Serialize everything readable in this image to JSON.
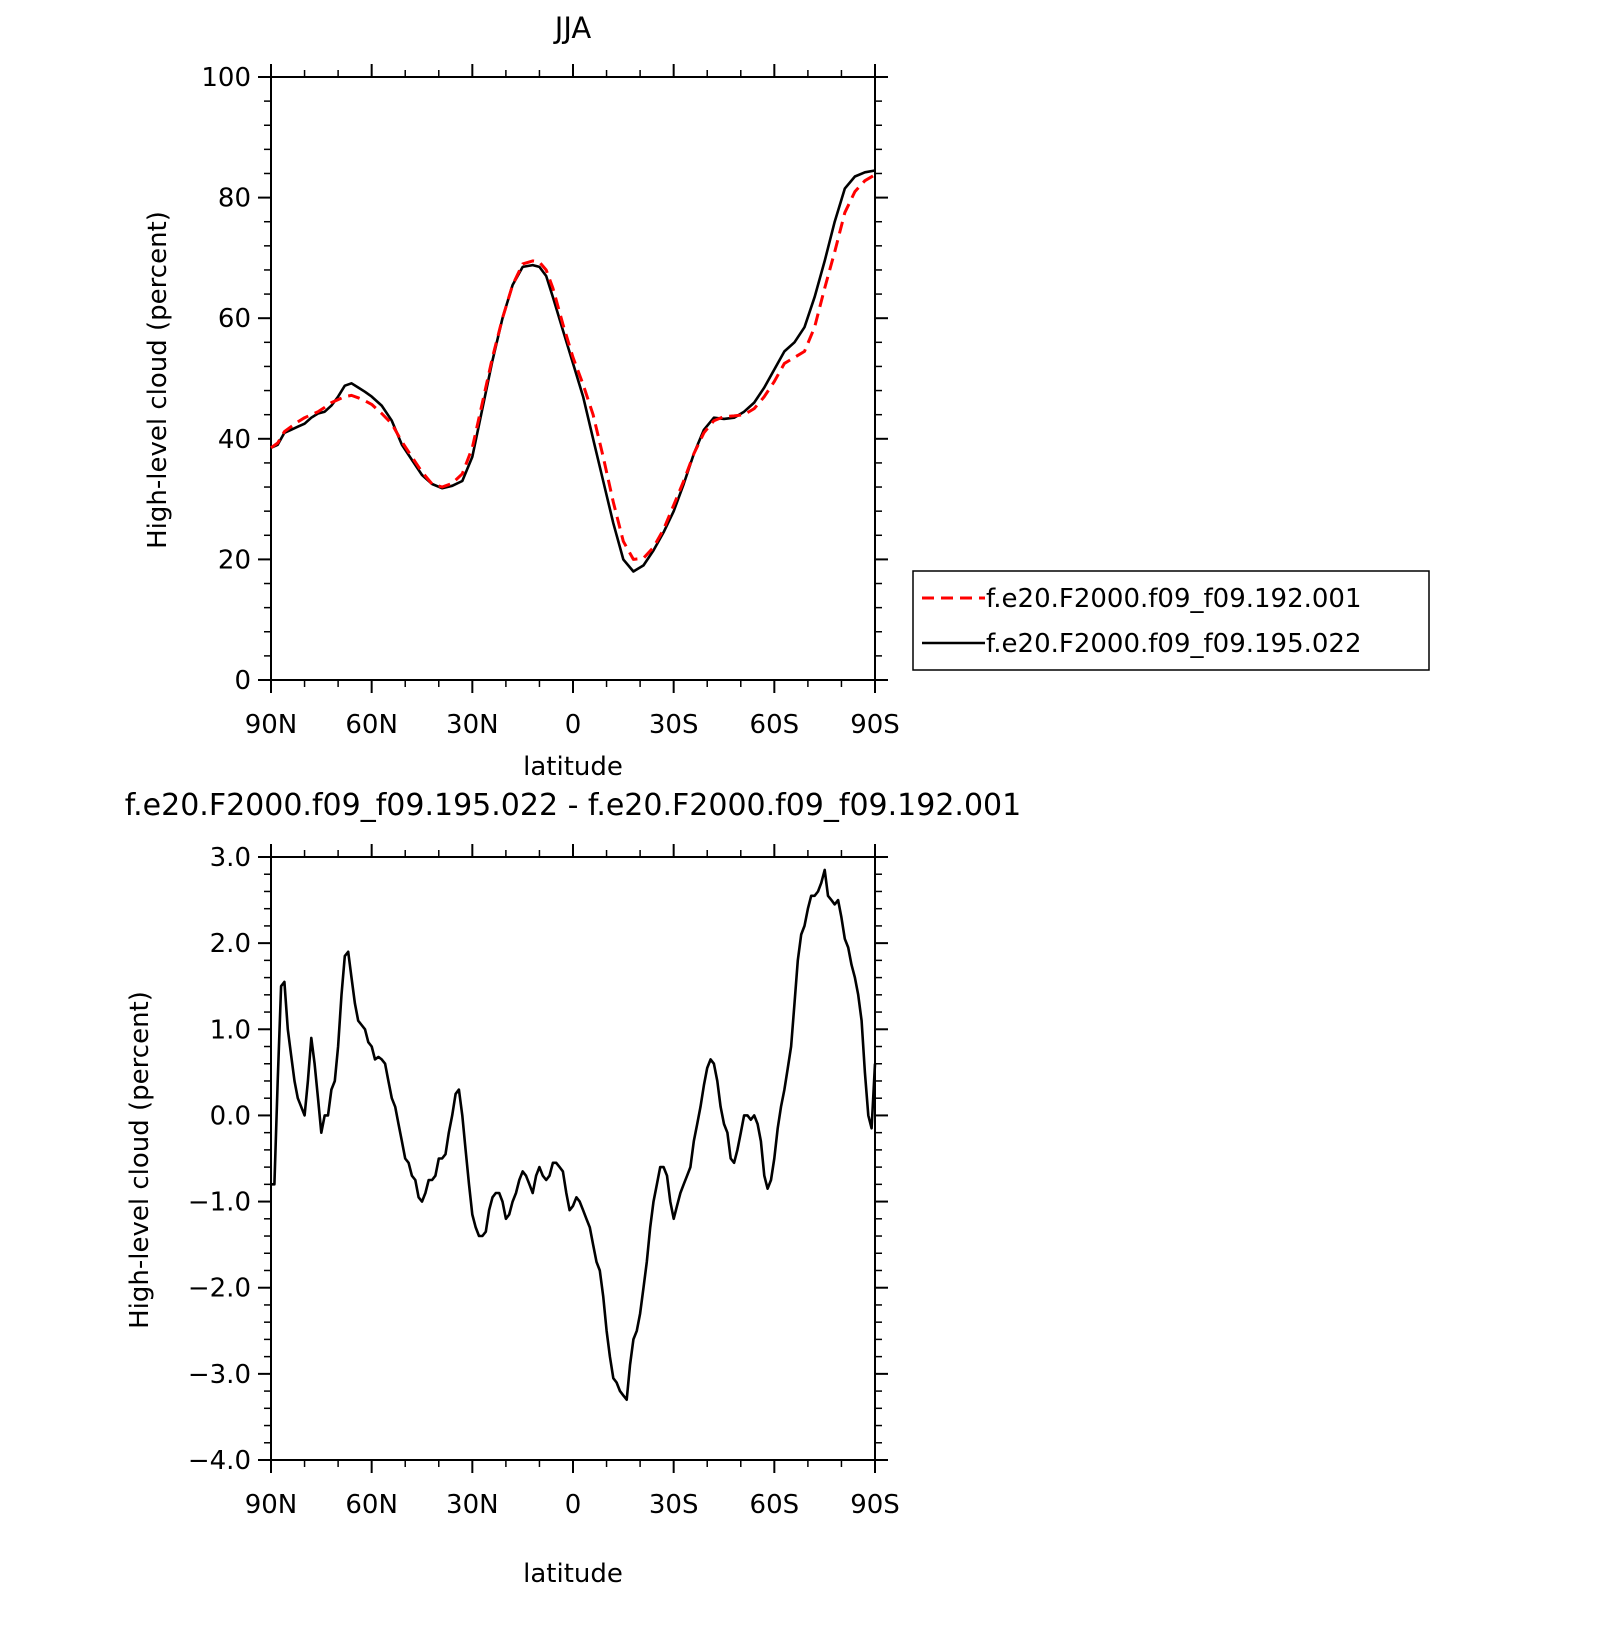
{
  "chart_data": [
    {
      "type": "line",
      "title": "JJA",
      "xlabel": "latitude",
      "ylabel": "High-level cloud (percent)",
      "xlim": [
        90,
        -90
      ],
      "ylim": [
        0,
        100
      ],
      "x_ticks": [
        {
          "value": 90,
          "label": "90N"
        },
        {
          "value": 60,
          "label": "60N"
        },
        {
          "value": 30,
          "label": "30N"
        },
        {
          "value": 0,
          "label": "0"
        },
        {
          "value": -30,
          "label": "30S"
        },
        {
          "value": -60,
          "label": "60S"
        },
        {
          "value": -90,
          "label": "90S"
        }
      ],
      "y_ticks": [
        {
          "value": 0,
          "label": "0"
        },
        {
          "value": 20,
          "label": "20"
        },
        {
          "value": 40,
          "label": "40"
        },
        {
          "value": 60,
          "label": "60"
        },
        {
          "value": 80,
          "label": "80"
        },
        {
          "value": 100,
          "label": "100"
        }
      ],
      "legend_position": "right",
      "series": [
        {
          "name": "f.e20.F2000.f09_f09.192.001",
          "color": "#ff0000",
          "dash": "dashed",
          "x": [
            90,
            88,
            86,
            84,
            82,
            80,
            78,
            76,
            74,
            72,
            70,
            68,
            66,
            64,
            62,
            60,
            57,
            54,
            51,
            48,
            45,
            42,
            39,
            36,
            33,
            30,
            27,
            24,
            21,
            18,
            15,
            12,
            10,
            8,
            6,
            3,
            0,
            -3,
            -6,
            -9,
            -12,
            -15,
            -18,
            -21,
            -24,
            -27,
            -30,
            -33,
            -36,
            -39,
            -42,
            -45,
            -48,
            -51,
            -54,
            -57,
            -60,
            -63,
            -66,
            -69,
            -72,
            -75,
            -78,
            -81,
            -84,
            -87,
            -90
          ],
          "y": [
            38.5,
            39.3,
            41.2,
            42.0,
            42.8,
            43.5,
            44.0,
            44.5,
            45.2,
            46.0,
            46.5,
            47.0,
            47.2,
            46.8,
            46.3,
            45.7,
            44.2,
            42.5,
            39.5,
            37.0,
            34.5,
            32.5,
            32.0,
            32.6,
            34.2,
            38.5,
            46.0,
            53.5,
            60.0,
            65.5,
            69.0,
            69.5,
            69.3,
            68.0,
            65.0,
            59.0,
            53.5,
            49.0,
            44.0,
            37.0,
            29.5,
            23.0,
            20.0,
            20.2,
            22.0,
            25.0,
            29.0,
            33.0,
            37.5,
            41.0,
            43.0,
            43.7,
            43.8,
            44.0,
            45.0,
            47.0,
            49.5,
            52.5,
            53.5,
            54.5,
            58.5,
            65.0,
            71.0,
            77.5,
            81.0,
            82.8,
            83.8
          ]
        },
        {
          "name": "f.e20.F2000.f09_f09.195.022",
          "color": "#000000",
          "dash": "solid",
          "x": [
            90,
            88,
            86,
            84,
            82,
            80,
            78,
            76,
            74,
            72,
            70,
            68,
            66,
            64,
            62,
            60,
            57,
            54,
            51,
            48,
            45,
            42,
            39,
            36,
            33,
            30,
            27,
            24,
            21,
            18,
            15,
            12,
            10,
            8,
            6,
            3,
            0,
            -3,
            -6,
            -9,
            -12,
            -15,
            -18,
            -21,
            -24,
            -27,
            -30,
            -33,
            -36,
            -39,
            -42,
            -45,
            -48,
            -51,
            -54,
            -57,
            -60,
            -63,
            -66,
            -69,
            -72,
            -75,
            -78,
            -81,
            -84,
            -87,
            -90
          ],
          "y": [
            38.5,
            39.0,
            41.0,
            41.5,
            42.0,
            42.5,
            43.5,
            44.2,
            44.5,
            45.5,
            47.0,
            48.8,
            49.2,
            48.5,
            47.8,
            47.0,
            45.5,
            43.0,
            39.0,
            36.5,
            34.0,
            32.5,
            31.8,
            32.2,
            33.0,
            37.0,
            45.0,
            53.0,
            60.0,
            65.5,
            68.5,
            68.8,
            68.5,
            67.0,
            63.5,
            58.0,
            52.5,
            47.0,
            40.0,
            33.0,
            26.0,
            20.0,
            18.0,
            19.0,
            21.5,
            24.5,
            28.0,
            32.5,
            37.5,
            41.5,
            43.5,
            43.3,
            43.5,
            44.5,
            46.0,
            48.5,
            51.5,
            54.5,
            56.0,
            58.5,
            63.5,
            69.5,
            76.0,
            81.5,
            83.5,
            84.2,
            84.5
          ]
        }
      ]
    },
    {
      "type": "line",
      "title": "f.e20.F2000.f09_f09.195.022 - f.e20.F2000.f09_f09.192.001",
      "xlabel": "latitude",
      "ylabel": "High-level cloud (percent)",
      "xlim": [
        90,
        -90
      ],
      "ylim": [
        -4.0,
        3.0
      ],
      "x_ticks": [
        {
          "value": 90,
          "label": "90N"
        },
        {
          "value": 60,
          "label": "60N"
        },
        {
          "value": 30,
          "label": "30N"
        },
        {
          "value": 0,
          "label": "0"
        },
        {
          "value": -30,
          "label": "30S"
        },
        {
          "value": -60,
          "label": "60S"
        },
        {
          "value": -90,
          "label": "90S"
        }
      ],
      "y_ticks": [
        {
          "value": -4.0,
          "label": "−4.0"
        },
        {
          "value": -3.0,
          "label": "−3.0"
        },
        {
          "value": -2.0,
          "label": "−2.0"
        },
        {
          "value": -1.0,
          "label": "−1.0"
        },
        {
          "value": 0.0,
          "label": "0.0"
        },
        {
          "value": 1.0,
          "label": "1.0"
        },
        {
          "value": 2.0,
          "label": "2.0"
        },
        {
          "value": 3.0,
          "label": "3.0"
        }
      ],
      "series": [
        {
          "color": "#000000",
          "dash": "solid",
          "x": [
            90,
            89,
            88,
            87,
            86,
            85,
            84,
            83,
            82,
            81,
            80,
            79,
            78,
            77,
            76,
            75,
            74,
            73,
            72,
            71,
            70,
            69,
            68,
            67,
            66,
            65,
            64,
            63,
            62,
            61,
            60,
            59,
            58,
            57,
            56,
            55,
            54,
            53,
            52,
            51,
            50,
            49,
            48,
            47,
            46,
            45,
            44,
            43,
            42,
            41,
            40,
            39,
            38,
            37,
            36,
            35,
            34,
            33,
            32,
            31,
            30,
            29,
            28,
            27,
            26,
            25,
            24,
            23,
            22,
            21,
            20,
            19,
            18,
            17,
            16,
            15,
            14,
            13,
            12,
            11,
            10,
            9,
            8,
            7,
            6,
            5,
            4,
            3,
            2,
            1,
            0,
            -1,
            -2,
            -3,
            -4,
            -5,
            -6,
            -7,
            -8,
            -9,
            -10,
            -11,
            -12,
            -13,
            -14,
            -15,
            -16,
            -17,
            -18,
            -19,
            -20,
            -21,
            -22,
            -23,
            -24,
            -25,
            -26,
            -27,
            -28,
            -29,
            -30,
            -31,
            -32,
            -33,
            -34,
            -35,
            -36,
            -37,
            -38,
            -39,
            -40,
            -41,
            -42,
            -43,
            -44,
            -45,
            -46,
            -47,
            -48,
            -49,
            -50,
            -51,
            -52,
            -53,
            -54,
            -55,
            -56,
            -57,
            -58,
            -59,
            -60,
            -61,
            -62,
            -63,
            -64,
            -65,
            -66,
            -67,
            -68,
            -69,
            -70,
            -71,
            -72,
            -73,
            -74,
            -75,
            -76,
            -77,
            -78,
            -79,
            -80,
            -81,
            -82,
            -83,
            -84,
            -85,
            -86,
            -87,
            -88,
            -89,
            -90
          ],
          "y": [
            -0.8,
            -0.8,
            0.4,
            1.5,
            1.55,
            1.0,
            0.7,
            0.4,
            0.2,
            0.1,
            0.0,
            0.4,
            0.9,
            0.6,
            0.2,
            -0.2,
            0.0,
            0.0,
            0.3,
            0.4,
            0.8,
            1.4,
            1.85,
            1.9,
            1.6,
            1.3,
            1.1,
            1.05,
            1.0,
            0.85,
            0.8,
            0.65,
            0.68,
            0.65,
            0.6,
            0.4,
            0.2,
            0.1,
            -0.1,
            -0.3,
            -0.5,
            -0.55,
            -0.7,
            -0.75,
            -0.95,
            -1.0,
            -0.9,
            -0.75,
            -0.75,
            -0.7,
            -0.5,
            -0.5,
            -0.45,
            -0.2,
            0.0,
            0.25,
            0.3,
            0.0,
            -0.4,
            -0.8,
            -1.15,
            -1.3,
            -1.4,
            -1.4,
            -1.35,
            -1.1,
            -0.95,
            -0.9,
            -0.9,
            -1.0,
            -1.2,
            -1.15,
            -1.0,
            -0.9,
            -0.75,
            -0.65,
            -0.7,
            -0.8,
            -0.9,
            -0.7,
            -0.6,
            -0.7,
            -0.75,
            -0.7,
            -0.55,
            -0.55,
            -0.6,
            -0.65,
            -0.9,
            -1.1,
            -1.05,
            -0.95,
            -1.0,
            -1.1,
            -1.2,
            -1.3,
            -1.5,
            -1.7,
            -1.8,
            -2.1,
            -2.5,
            -2.8,
            -3.05,
            -3.1,
            -3.2,
            -3.25,
            -3.3,
            -2.9,
            -2.6,
            -2.5,
            -2.3,
            -2.0,
            -1.7,
            -1.3,
            -1.0,
            -0.8,
            -0.6,
            -0.6,
            -0.7,
            -1.0,
            -1.2,
            -1.05,
            -0.9,
            -0.8,
            -0.7,
            -0.6,
            -0.3,
            -0.1,
            0.1,
            0.35,
            0.55,
            0.65,
            0.6,
            0.4,
            0.1,
            -0.1,
            -0.2,
            -0.5,
            -0.55,
            -0.4,
            -0.2,
            0.0,
            0.0,
            -0.05,
            0.0,
            -0.1,
            -0.3,
            -0.7,
            -0.85,
            -0.75,
            -0.5,
            -0.15,
            0.1,
            0.3,
            0.55,
            0.8,
            1.3,
            1.8,
            2.1,
            2.2,
            2.4,
            2.55,
            2.55,
            2.6,
            2.7,
            2.85,
            2.55,
            2.5,
            2.45,
            2.5,
            2.3,
            2.05,
            1.95,
            1.75,
            1.6,
            1.4,
            1.1,
            0.5,
            0.0,
            -0.15,
            0.6
          ]
        }
      ]
    }
  ]
}
